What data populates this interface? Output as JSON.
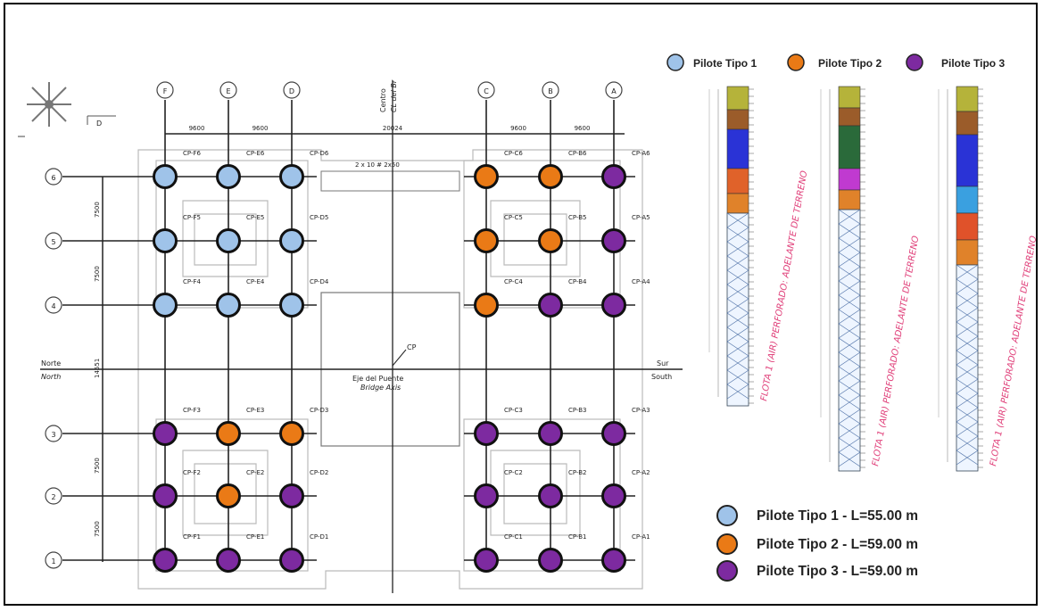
{
  "colors": {
    "tipo1": "#9fc3e9",
    "tipo2": "#ea7a16",
    "tipo3": "#7d2aa0",
    "handwriting": "#e0407a"
  },
  "columns": [
    "F",
    "E",
    "D",
    "C",
    "B",
    "A"
  ],
  "rows": [
    "6",
    "5",
    "4",
    "3",
    "2",
    "1"
  ],
  "spacings": [
    "9600",
    "9600",
    "20024",
    "9600",
    "9600"
  ],
  "row_spacings": [
    "7500",
    "7500",
    "14551",
    "7500",
    "7500"
  ],
  "north_label": "Norte",
  "north_label_en": "North",
  "south_label": "Sur",
  "south_label_en": "South",
  "center_label": "Centro",
  "center_label_en": "CL del Br",
  "bridge_axis": "Eje del Puente",
  "bridge_axis_en": "Bridge Axis",
  "cp_label": "CP",
  "beam_note": "2 x 10 # 2x50",
  "compass_label": "D",
  "piles": [
    {
      "id": "CP-F6",
      "type": 1
    },
    {
      "id": "CP-E6",
      "type": 1
    },
    {
      "id": "CP-D6",
      "type": 1
    },
    {
      "id": "CP-C6",
      "type": 2
    },
    {
      "id": "CP-B6",
      "type": 2
    },
    {
      "id": "CP-A6",
      "type": 3
    },
    {
      "id": "CP-F5",
      "type": 1
    },
    {
      "id": "CP-E5",
      "type": 1
    },
    {
      "id": "CP-D5",
      "type": 1
    },
    {
      "id": "CP-C5",
      "type": 2
    },
    {
      "id": "CP-B5",
      "type": 2
    },
    {
      "id": "CP-A5",
      "type": 3
    },
    {
      "id": "CP-F4",
      "type": 1
    },
    {
      "id": "CP-E4",
      "type": 1
    },
    {
      "id": "CP-D4",
      "type": 1
    },
    {
      "id": "CP-C4",
      "type": 2
    },
    {
      "id": "CP-B4",
      "type": 3
    },
    {
      "id": "CP-A4",
      "type": 3
    },
    {
      "id": "CP-F3",
      "type": 3
    },
    {
      "id": "CP-E3",
      "type": 2
    },
    {
      "id": "CP-D3",
      "type": 2
    },
    {
      "id": "CP-C3",
      "type": 3
    },
    {
      "id": "CP-B3",
      "type": 3
    },
    {
      "id": "CP-A3",
      "type": 3
    },
    {
      "id": "CP-F2",
      "type": 3
    },
    {
      "id": "CP-E2",
      "type": 2
    },
    {
      "id": "CP-D2",
      "type": 3
    },
    {
      "id": "CP-C2",
      "type": 3
    },
    {
      "id": "CP-B2",
      "type": 3
    },
    {
      "id": "CP-A2",
      "type": 3
    },
    {
      "id": "CP-F1",
      "type": 3
    },
    {
      "id": "CP-E1",
      "type": 3
    },
    {
      "id": "CP-D1",
      "type": 3
    },
    {
      "id": "CP-C1",
      "type": 3
    },
    {
      "id": "CP-B1",
      "type": 3
    },
    {
      "id": "CP-A1",
      "type": 3
    }
  ],
  "legend_top": [
    {
      "label": "Pilote Tipo 1",
      "type": 1
    },
    {
      "label": "Pilote Tipo 2",
      "type": 2
    },
    {
      "label": "Pilote Tipo 3",
      "type": 3
    }
  ],
  "legend_bottom": [
    {
      "label": "Pilote Tipo 1 - L=55.00 m",
      "type": 1
    },
    {
      "label": "Pilote Tipo 2 - L=59.00 m",
      "type": 2
    },
    {
      "label": "Pilote Tipo 3 - L=59.00 m",
      "type": 3
    }
  ],
  "profile_colors": [
    [
      "#b5b33a",
      "#9b5c2a",
      "#2a33d6",
      "#e0622a",
      "#e0822a"
    ],
    [
      "#b5b33a",
      "#9b5c2a",
      "#2a6a3a",
      "#c03ad0",
      "#e0822a"
    ],
    [
      "#b5b33a",
      "#9b5c2a",
      "#2a33d6",
      "#3aa0e0",
      "#e0522a",
      "#e0822a"
    ]
  ],
  "profile_notes": [
    "FLOTA 1 (AIR) PERFORADO: ADELANTE DE TERRENO",
    "FLOTA 1 (AIR) PERFORADO: ADELANTE DE TERRENO",
    "FLOTA 1 (AIR) PERFORADO: ADELANTE DE TERRENO"
  ]
}
